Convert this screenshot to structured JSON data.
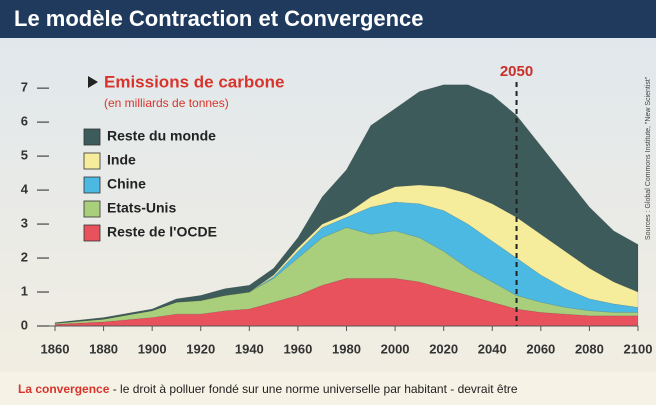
{
  "chart_data": {
    "type": "stacked_area",
    "title": "Le modèle Contraction et Convergence",
    "legend_title": "Emissions de carbone",
    "legend_subtitle": "(en milliards de tonnes)",
    "x": [
      1860,
      1880,
      1900,
      1910,
      1920,
      1930,
      1940,
      1950,
      1960,
      1970,
      1980,
      1990,
      2000,
      2010,
      2020,
      2030,
      2040,
      2050,
      2060,
      2070,
      2080,
      2090,
      2100
    ],
    "series": [
      {
        "name": "Reste de l'OCDE",
        "color": "#e8525c",
        "values": [
          0.05,
          0.12,
          0.25,
          0.35,
          0.35,
          0.45,
          0.5,
          0.7,
          0.9,
          1.2,
          1.4,
          1.4,
          1.4,
          1.3,
          1.1,
          0.9,
          0.7,
          0.5,
          0.4,
          0.35,
          0.3,
          0.3,
          0.3
        ]
      },
      {
        "name": "Etats-Unis",
        "color": "#a9cf7c",
        "values": [
          0.03,
          0.08,
          0.2,
          0.35,
          0.4,
          0.45,
          0.5,
          0.7,
          1.1,
          1.4,
          1.5,
          1.3,
          1.4,
          1.3,
          1.1,
          0.8,
          0.6,
          0.4,
          0.3,
          0.2,
          0.15,
          0.1,
          0.1
        ]
      },
      {
        "name": "Chine",
        "color": "#4cb9e2",
        "values": [
          0,
          0,
          0,
          0,
          0,
          0,
          0,
          0.05,
          0.2,
          0.3,
          0.3,
          0.8,
          0.85,
          1.0,
          1.2,
          1.3,
          1.2,
          1.1,
          0.8,
          0.55,
          0.35,
          0.25,
          0.15
        ]
      },
      {
        "name": "Inde",
        "color": "#f6ed9c",
        "values": [
          0,
          0,
          0,
          0,
          0,
          0,
          0,
          0.05,
          0.1,
          0.1,
          0.1,
          0.3,
          0.45,
          0.55,
          0.7,
          0.9,
          1.1,
          1.2,
          1.2,
          1.1,
          0.9,
          0.65,
          0.45
        ]
      },
      {
        "name": "Reste du monde",
        "color": "#3e5b5c",
        "values": [
          0.02,
          0.05,
          0.05,
          0.1,
          0.15,
          0.2,
          0.2,
          0.2,
          0.3,
          0.8,
          1.3,
          2.1,
          2.3,
          2.75,
          3.0,
          3.2,
          3.2,
          3.0,
          2.6,
          2.2,
          1.8,
          1.5,
          1.4
        ]
      }
    ],
    "xlim": [
      1860,
      2100
    ],
    "xticks": [
      1860,
      1880,
      1900,
      1920,
      1940,
      1960,
      1980,
      2000,
      2020,
      2040,
      2060,
      2080,
      2100
    ],
    "ylim": [
      0,
      7.8
    ],
    "yticks": [
      0,
      1,
      2,
      3,
      4,
      5,
      6,
      7
    ],
    "marker_x": 2050,
    "source": "Sources : Global Commons Institute, \"New Scientist\"",
    "caption_lead": "La convergence",
    "caption": " - le droit à polluer fondé sur une norme universelle par habitant - devrait être"
  }
}
